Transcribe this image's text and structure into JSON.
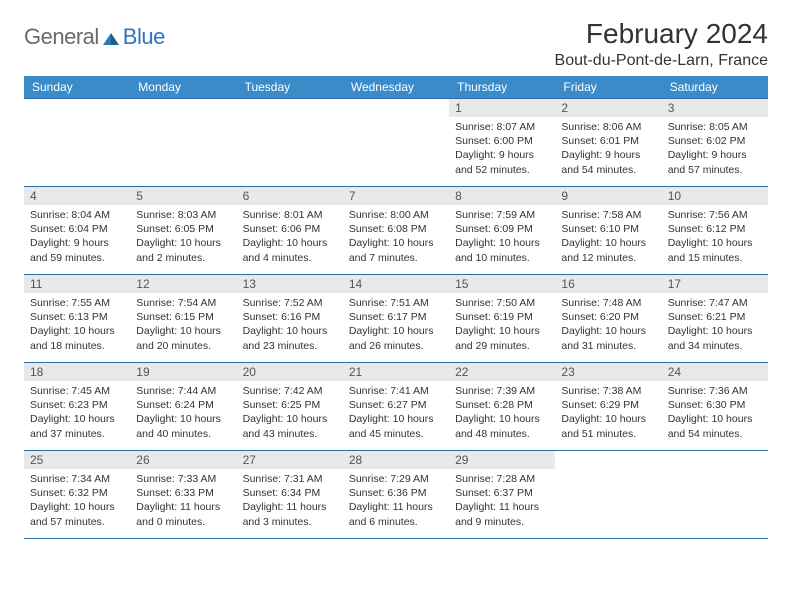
{
  "logo": {
    "general": "General",
    "blue": "Blue"
  },
  "title": "February 2024",
  "location": "Bout-du-Pont-de-Larn, France",
  "colors": {
    "header_bg": "#3b8bc8",
    "header_text": "#ffffff",
    "daynum_bg": "#e9e9e9",
    "rule": "#2f6aa0",
    "logo_general": "#6a6a6a",
    "logo_blue": "#2f77bb"
  },
  "weekdays": [
    "Sunday",
    "Monday",
    "Tuesday",
    "Wednesday",
    "Thursday",
    "Friday",
    "Saturday"
  ],
  "first_weekday_index": 4,
  "days": [
    {
      "n": 1,
      "sunrise": "8:07 AM",
      "sunset": "6:00 PM",
      "daylight": "9 hours and 52 minutes."
    },
    {
      "n": 2,
      "sunrise": "8:06 AM",
      "sunset": "6:01 PM",
      "daylight": "9 hours and 54 minutes."
    },
    {
      "n": 3,
      "sunrise": "8:05 AM",
      "sunset": "6:02 PM",
      "daylight": "9 hours and 57 minutes."
    },
    {
      "n": 4,
      "sunrise": "8:04 AM",
      "sunset": "6:04 PM",
      "daylight": "9 hours and 59 minutes."
    },
    {
      "n": 5,
      "sunrise": "8:03 AM",
      "sunset": "6:05 PM",
      "daylight": "10 hours and 2 minutes."
    },
    {
      "n": 6,
      "sunrise": "8:01 AM",
      "sunset": "6:06 PM",
      "daylight": "10 hours and 4 minutes."
    },
    {
      "n": 7,
      "sunrise": "8:00 AM",
      "sunset": "6:08 PM",
      "daylight": "10 hours and 7 minutes."
    },
    {
      "n": 8,
      "sunrise": "7:59 AM",
      "sunset": "6:09 PM",
      "daylight": "10 hours and 10 minutes."
    },
    {
      "n": 9,
      "sunrise": "7:58 AM",
      "sunset": "6:10 PM",
      "daylight": "10 hours and 12 minutes."
    },
    {
      "n": 10,
      "sunrise": "7:56 AM",
      "sunset": "6:12 PM",
      "daylight": "10 hours and 15 minutes."
    },
    {
      "n": 11,
      "sunrise": "7:55 AM",
      "sunset": "6:13 PM",
      "daylight": "10 hours and 18 minutes."
    },
    {
      "n": 12,
      "sunrise": "7:54 AM",
      "sunset": "6:15 PM",
      "daylight": "10 hours and 20 minutes."
    },
    {
      "n": 13,
      "sunrise": "7:52 AM",
      "sunset": "6:16 PM",
      "daylight": "10 hours and 23 minutes."
    },
    {
      "n": 14,
      "sunrise": "7:51 AM",
      "sunset": "6:17 PM",
      "daylight": "10 hours and 26 minutes."
    },
    {
      "n": 15,
      "sunrise": "7:50 AM",
      "sunset": "6:19 PM",
      "daylight": "10 hours and 29 minutes."
    },
    {
      "n": 16,
      "sunrise": "7:48 AM",
      "sunset": "6:20 PM",
      "daylight": "10 hours and 31 minutes."
    },
    {
      "n": 17,
      "sunrise": "7:47 AM",
      "sunset": "6:21 PM",
      "daylight": "10 hours and 34 minutes."
    },
    {
      "n": 18,
      "sunrise": "7:45 AM",
      "sunset": "6:23 PM",
      "daylight": "10 hours and 37 minutes."
    },
    {
      "n": 19,
      "sunrise": "7:44 AM",
      "sunset": "6:24 PM",
      "daylight": "10 hours and 40 minutes."
    },
    {
      "n": 20,
      "sunrise": "7:42 AM",
      "sunset": "6:25 PM",
      "daylight": "10 hours and 43 minutes."
    },
    {
      "n": 21,
      "sunrise": "7:41 AM",
      "sunset": "6:27 PM",
      "daylight": "10 hours and 45 minutes."
    },
    {
      "n": 22,
      "sunrise": "7:39 AM",
      "sunset": "6:28 PM",
      "daylight": "10 hours and 48 minutes."
    },
    {
      "n": 23,
      "sunrise": "7:38 AM",
      "sunset": "6:29 PM",
      "daylight": "10 hours and 51 minutes."
    },
    {
      "n": 24,
      "sunrise": "7:36 AM",
      "sunset": "6:30 PM",
      "daylight": "10 hours and 54 minutes."
    },
    {
      "n": 25,
      "sunrise": "7:34 AM",
      "sunset": "6:32 PM",
      "daylight": "10 hours and 57 minutes."
    },
    {
      "n": 26,
      "sunrise": "7:33 AM",
      "sunset": "6:33 PM",
      "daylight": "11 hours and 0 minutes."
    },
    {
      "n": 27,
      "sunrise": "7:31 AM",
      "sunset": "6:34 PM",
      "daylight": "11 hours and 3 minutes."
    },
    {
      "n": 28,
      "sunrise": "7:29 AM",
      "sunset": "6:36 PM",
      "daylight": "11 hours and 6 minutes."
    },
    {
      "n": 29,
      "sunrise": "7:28 AM",
      "sunset": "6:37 PM",
      "daylight": "11 hours and 9 minutes."
    }
  ],
  "labels": {
    "sunrise": "Sunrise:",
    "sunset": "Sunset:",
    "daylight": "Daylight:"
  }
}
